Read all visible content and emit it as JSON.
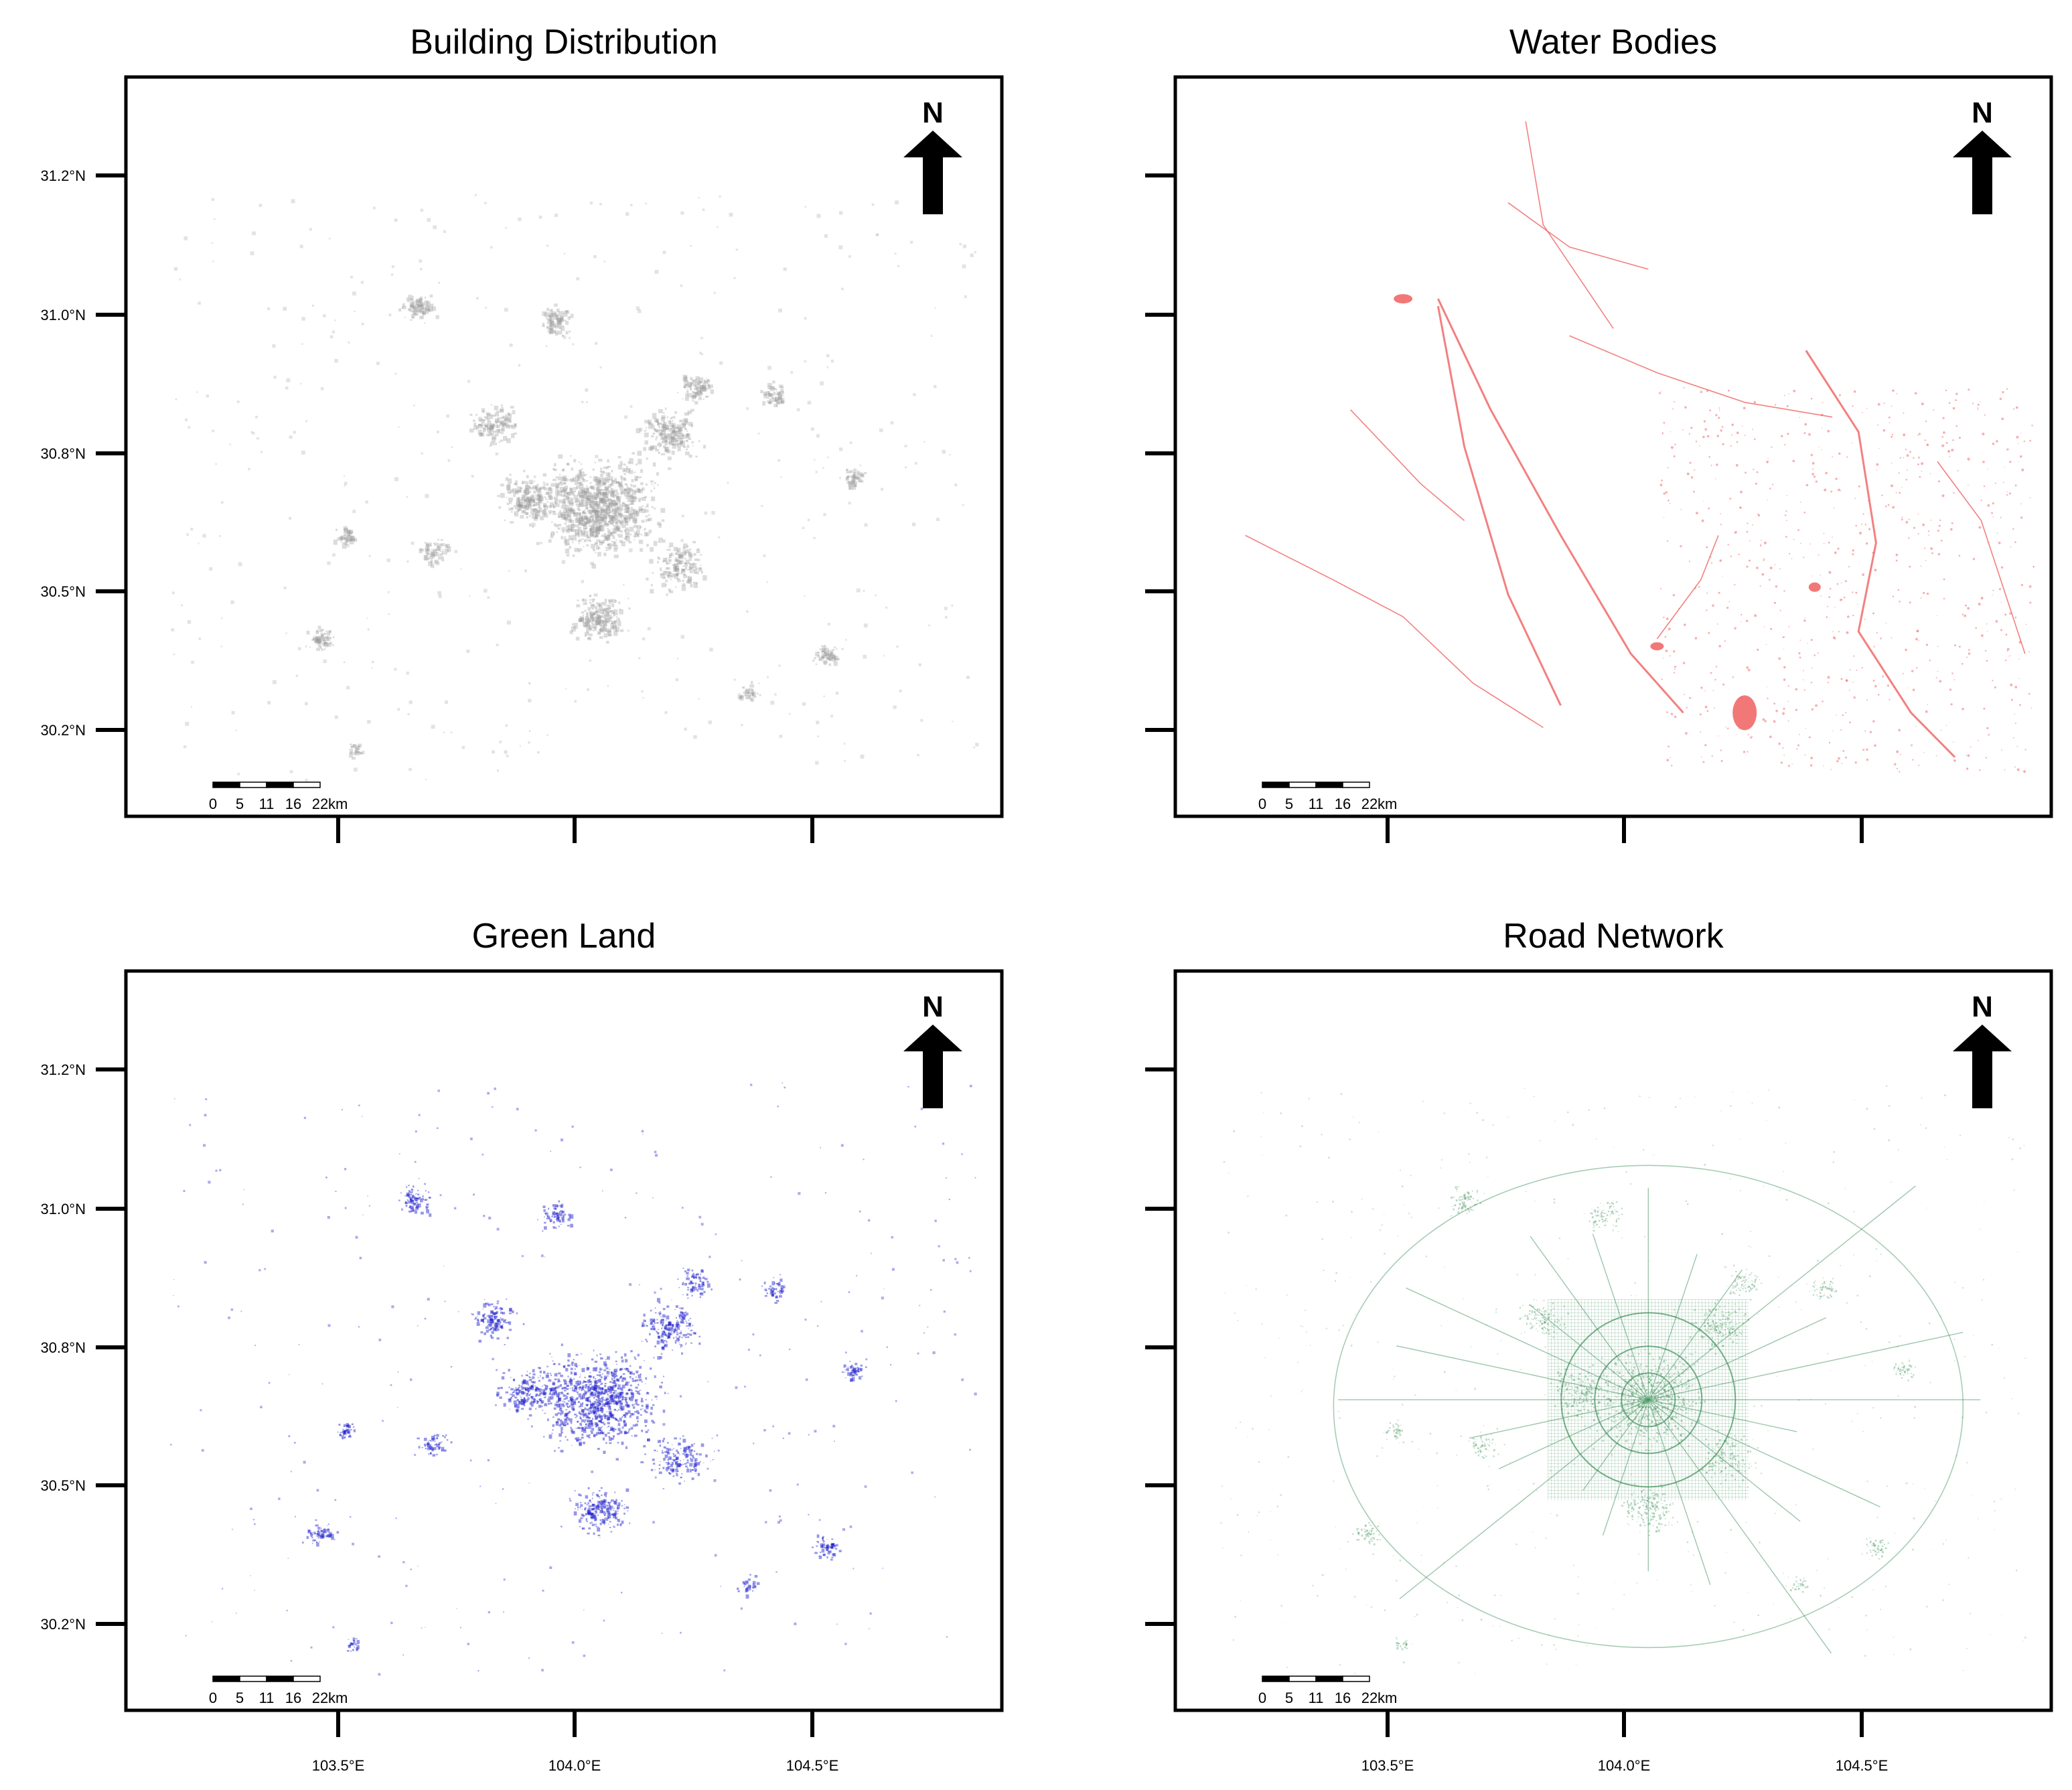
{
  "figure": {
    "panels": [
      {
        "id": "buildings",
        "title": "Building Distribution",
        "layer_color": "#9a9a9a",
        "show_x_labels": false,
        "show_y_labels": true
      },
      {
        "id": "water",
        "title": "Water Bodies",
        "layer_color": "#f06060",
        "show_x_labels": false,
        "show_y_labels": false
      },
      {
        "id": "green",
        "title": "Green Land",
        "layer_color": "#1a1acc",
        "show_x_labels": true,
        "show_y_labels": true
      },
      {
        "id": "roads",
        "title": "Road Network",
        "layer_color": "#3e8e5a",
        "show_x_labels": true,
        "show_y_labels": false
      }
    ],
    "x_ticks": [
      {
        "value": 103.5,
        "label": "103.5°E"
      },
      {
        "value": 104.0,
        "label": "104.0°E"
      },
      {
        "value": 104.5,
        "label": "104.5°E"
      }
    ],
    "y_ticks": [
      {
        "value": 31.2,
        "label": "31.2°N"
      },
      {
        "value": 31.0,
        "label": "31.0°N"
      },
      {
        "value": 30.8,
        "label": "30.8°N"
      },
      {
        "value": 30.5,
        "label": "30.5°N"
      },
      {
        "value": 30.2,
        "label": "30.2°N"
      }
    ],
    "scale_bar": {
      "labels": [
        "0",
        "5",
        "11",
        "16",
        "22"
      ],
      "unit": "km"
    },
    "north_arrow": {
      "label": "N"
    }
  }
}
